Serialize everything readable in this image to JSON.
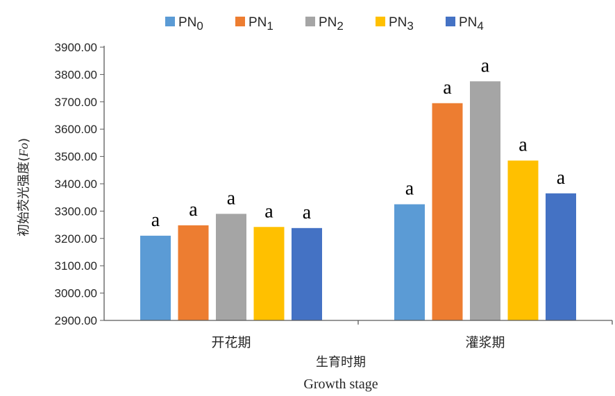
{
  "chart_data": {
    "type": "bar",
    "categories": [
      "开花期",
      "灌浆期"
    ],
    "series": [
      {
        "name": "PN",
        "sub": "0",
        "color": "#5B9BD5",
        "values": [
          3210,
          3325
        ],
        "labels": [
          "a",
          "a"
        ]
      },
      {
        "name": "PN",
        "sub": "1",
        "color": "#ED7D31",
        "values": [
          3248,
          3695
        ],
        "labels": [
          "a",
          "a"
        ]
      },
      {
        "name": "PN",
        "sub": "2",
        "color": "#A5A5A5",
        "values": [
          3290,
          3775
        ],
        "labels": [
          "a",
          "a"
        ]
      },
      {
        "name": "PN",
        "sub": "3",
        "color": "#FFC000",
        "values": [
          3242,
          3485
        ],
        "labels": [
          "a",
          "a"
        ]
      },
      {
        "name": "PN",
        "sub": "4",
        "color": "#4472C4",
        "values": [
          3238,
          3365
        ],
        "labels": [
          "a",
          "a"
        ]
      }
    ],
    "ylabel": "初始荧光强度",
    "ylabel_symbol": "Fo",
    "xlabel": "生育时期",
    "xlabel2": "Growth stage",
    "ylim": [
      2900,
      3900
    ],
    "yticks": [
      "2900.00",
      "3000.00",
      "3100.00",
      "3200.00",
      "3300.00",
      "3400.00",
      "3500.00",
      "3600.00",
      "3700.00",
      "3800.00",
      "3900.00"
    ],
    "legend_position": "top",
    "grid": false
  }
}
